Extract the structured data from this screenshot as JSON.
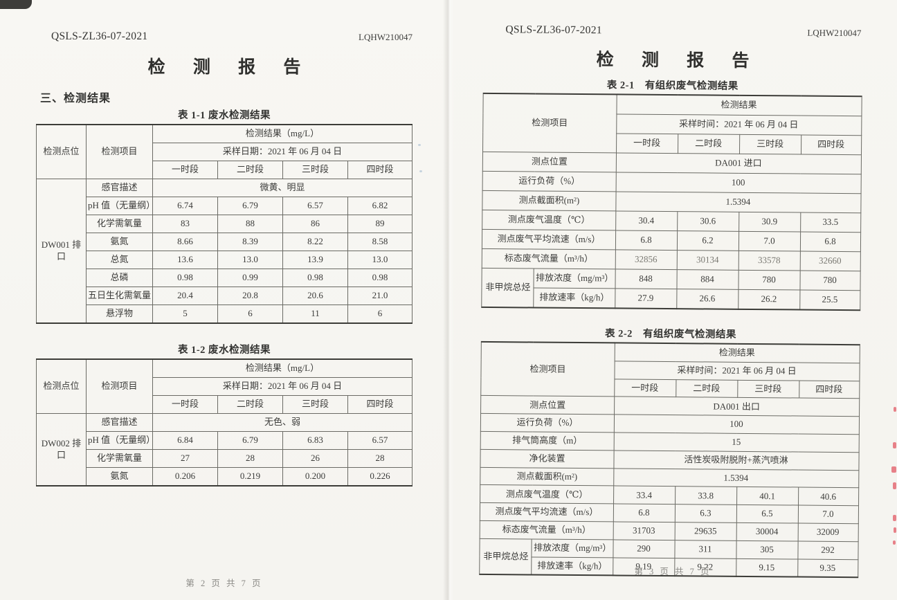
{
  "page_left": {
    "doc_code": "QSLS-ZL36-07-2021",
    "report_no": "LQHW210047",
    "title": "检 测 报 告",
    "section_heading": "三、检测结果",
    "footer": "第 2 页 共 7 页",
    "table_1_1": {
      "caption": "表 1-1 废水检测结果",
      "rows": [
        [
          {
            "t": "检测点位",
            "rs": 3
          },
          {
            "t": "检测项目",
            "rs": 3
          },
          {
            "t": "检测结果（mg/L）",
            "cs": 4
          }
        ],
        [
          {
            "t": "采样日期：2021 年 06 月 04 日",
            "cs": 4
          }
        ],
        [
          {
            "t": "一时段"
          },
          {
            "t": "二时段"
          },
          {
            "t": "三时段"
          },
          {
            "t": "四时段"
          }
        ],
        [
          {
            "t": "DW001 排口",
            "rs": 8
          },
          {
            "t": "感官描述"
          },
          {
            "t": "微黄、明显",
            "cs": 4
          }
        ],
        [
          {
            "t": "pH 值（无量纲）"
          },
          {
            "t": "6.74"
          },
          {
            "t": "6.79"
          },
          {
            "t": "6.57"
          },
          {
            "t": "6.82"
          }
        ],
        [
          {
            "t": "化学需氧量"
          },
          {
            "t": "83"
          },
          {
            "t": "88"
          },
          {
            "t": "86"
          },
          {
            "t": "89"
          }
        ],
        [
          {
            "t": "氨氮"
          },
          {
            "t": "8.66"
          },
          {
            "t": "8.39"
          },
          {
            "t": "8.22"
          },
          {
            "t": "8.58"
          }
        ],
        [
          {
            "t": "总氮"
          },
          {
            "t": "13.6"
          },
          {
            "t": "13.0"
          },
          {
            "t": "13.9"
          },
          {
            "t": "13.0"
          }
        ],
        [
          {
            "t": "总磷"
          },
          {
            "t": "0.98"
          },
          {
            "t": "0.99"
          },
          {
            "t": "0.98"
          },
          {
            "t": "0.98"
          }
        ],
        [
          {
            "t": "五日生化需氧量"
          },
          {
            "t": "20.4"
          },
          {
            "t": "20.8"
          },
          {
            "t": "20.6"
          },
          {
            "t": "21.0"
          }
        ],
        [
          {
            "t": "悬浮物"
          },
          {
            "t": "5"
          },
          {
            "t": "6"
          },
          {
            "t": "11"
          },
          {
            "t": "6"
          }
        ]
      ]
    },
    "table_1_2": {
      "caption": "表 1-2 废水检测结果",
      "rows": [
        [
          {
            "t": "检测点位",
            "rs": 3
          },
          {
            "t": "检测项目",
            "rs": 3
          },
          {
            "t": "检测结果（mg/L）",
            "cs": 4
          }
        ],
        [
          {
            "t": "采样日期：2021 年 06 月 04 日",
            "cs": 4
          }
        ],
        [
          {
            "t": "一时段"
          },
          {
            "t": "二时段"
          },
          {
            "t": "三时段"
          },
          {
            "t": "四时段"
          }
        ],
        [
          {
            "t": "DW002 排口",
            "rs": 4
          },
          {
            "t": "感官描述"
          },
          {
            "t": "无色、弱",
            "cs": 4
          }
        ],
        [
          {
            "t": "pH 值（无量纲）"
          },
          {
            "t": "6.84"
          },
          {
            "t": "6.79"
          },
          {
            "t": "6.83"
          },
          {
            "t": "6.57"
          }
        ],
        [
          {
            "t": "化学需氧量"
          },
          {
            "t": "27"
          },
          {
            "t": "28"
          },
          {
            "t": "26"
          },
          {
            "t": "28"
          }
        ],
        [
          {
            "t": "氨氮"
          },
          {
            "t": "0.206"
          },
          {
            "t": "0.219"
          },
          {
            "t": "0.200"
          },
          {
            "t": "0.226"
          }
        ]
      ]
    }
  },
  "page_right": {
    "doc_code": "QSLS-ZL36-07-2021",
    "report_no": "LQHW210047",
    "title": "检 测 报 告",
    "footer": "第 3 页 共 7 页",
    "table_2_1": {
      "caption": "表 2-1　有组织废气检测结果",
      "rows": [
        [
          {
            "t": "检测项目",
            "cs": 2,
            "rs": 3
          },
          {
            "t": "检测结果",
            "cs": 4
          }
        ],
        [
          {
            "t": "采样时间：2021 年 06 月 04 日",
            "cs": 4
          }
        ],
        [
          {
            "t": "一时段"
          },
          {
            "t": "二时段"
          },
          {
            "t": "三时段"
          },
          {
            "t": "四时段"
          }
        ],
        [
          {
            "t": "测点位置",
            "cs": 2
          },
          {
            "t": "DA001 进口",
            "cs": 4
          }
        ],
        [
          {
            "t": "运行负荷（%）",
            "cs": 2
          },
          {
            "t": "100",
            "cs": 4
          }
        ],
        [
          {
            "t": "测点截面积(m²)",
            "cs": 2
          },
          {
            "t": "1.5394",
            "cs": 4
          }
        ],
        [
          {
            "t": "测点废气温度（℃）",
            "cs": 2
          },
          {
            "t": "30.4"
          },
          {
            "t": "30.6"
          },
          {
            "t": "30.9"
          },
          {
            "t": "33.5"
          }
        ],
        [
          {
            "t": "测点废气平均流速（m/s）",
            "cs": 2
          },
          {
            "t": "6.8"
          },
          {
            "t": "6.2"
          },
          {
            "t": "7.0"
          },
          {
            "t": "6.8"
          }
        ],
        [
          {
            "t": "标态废气流量（m³/h）",
            "cs": 2
          },
          {
            "t": "32856",
            "cls": "faded"
          },
          {
            "t": "30134",
            "cls": "faded"
          },
          {
            "t": "33578",
            "cls": "faded"
          },
          {
            "t": "32660",
            "cls": "faded"
          }
        ],
        [
          {
            "t": "非甲烷总烃",
            "rs": 2
          },
          {
            "t": "排放浓度（mg/m³）"
          },
          {
            "t": "848"
          },
          {
            "t": "884"
          },
          {
            "t": "780"
          },
          {
            "t": "780"
          }
        ],
        [
          {
            "t": "排放速率（kg/h）"
          },
          {
            "t": "27.9"
          },
          {
            "t": "26.6"
          },
          {
            "t": "26.2"
          },
          {
            "t": "25.5"
          }
        ]
      ]
    },
    "table_2_2": {
      "caption": "表 2-2　有组织废气检测结果",
      "rows": [
        [
          {
            "t": "检测项目",
            "cs": 2,
            "rs": 3
          },
          {
            "t": "检测结果",
            "cs": 4
          }
        ],
        [
          {
            "t": "采样时间：2021 年 06 月 04 日",
            "cs": 4
          }
        ],
        [
          {
            "t": "一时段"
          },
          {
            "t": "二时段"
          },
          {
            "t": "三时段"
          },
          {
            "t": "四时段"
          }
        ],
        [
          {
            "t": "测点位置",
            "cs": 2
          },
          {
            "t": "DA001 出口",
            "cs": 4
          }
        ],
        [
          {
            "t": "运行负荷（%）",
            "cs": 2
          },
          {
            "t": "100",
            "cs": 4
          }
        ],
        [
          {
            "t": "排气筒高度（m）",
            "cs": 2
          },
          {
            "t": "15",
            "cs": 4
          }
        ],
        [
          {
            "t": "净化装置",
            "cs": 2
          },
          {
            "t": "活性炭吸附脱附+蒸汽喷淋",
            "cs": 4
          }
        ],
        [
          {
            "t": "测点截面积(m²)",
            "cs": 2
          },
          {
            "t": "1.5394",
            "cs": 4
          }
        ],
        [
          {
            "t": "测点废气温度（℃）",
            "cs": 2
          },
          {
            "t": "33.4"
          },
          {
            "t": "33.8"
          },
          {
            "t": "40.1"
          },
          {
            "t": "40.6"
          }
        ],
        [
          {
            "t": "测点废气平均流速（m/s）",
            "cs": 2
          },
          {
            "t": "6.8"
          },
          {
            "t": "6.3"
          },
          {
            "t": "6.5"
          },
          {
            "t": "7.0"
          }
        ],
        [
          {
            "t": "标态废气流量（m³/h）",
            "cs": 2
          },
          {
            "t": "31703"
          },
          {
            "t": "29635"
          },
          {
            "t": "30004"
          },
          {
            "t": "32009"
          }
        ],
        [
          {
            "t": "非甲烷总烃",
            "rs": 2
          },
          {
            "t": "排放浓度（mg/m³）"
          },
          {
            "t": "290"
          },
          {
            "t": "311"
          },
          {
            "t": "305"
          },
          {
            "t": "292"
          }
        ],
        [
          {
            "t": "排放速率（kg/h）"
          },
          {
            "t": "9.19"
          },
          {
            "t": "9.22"
          },
          {
            "t": "9.15"
          },
          {
            "t": "9.35"
          }
        ]
      ]
    }
  },
  "artifacts": {
    "stamp_color": "#e25a66",
    "note": "red stamp bleed marks on right scan edge"
  }
}
